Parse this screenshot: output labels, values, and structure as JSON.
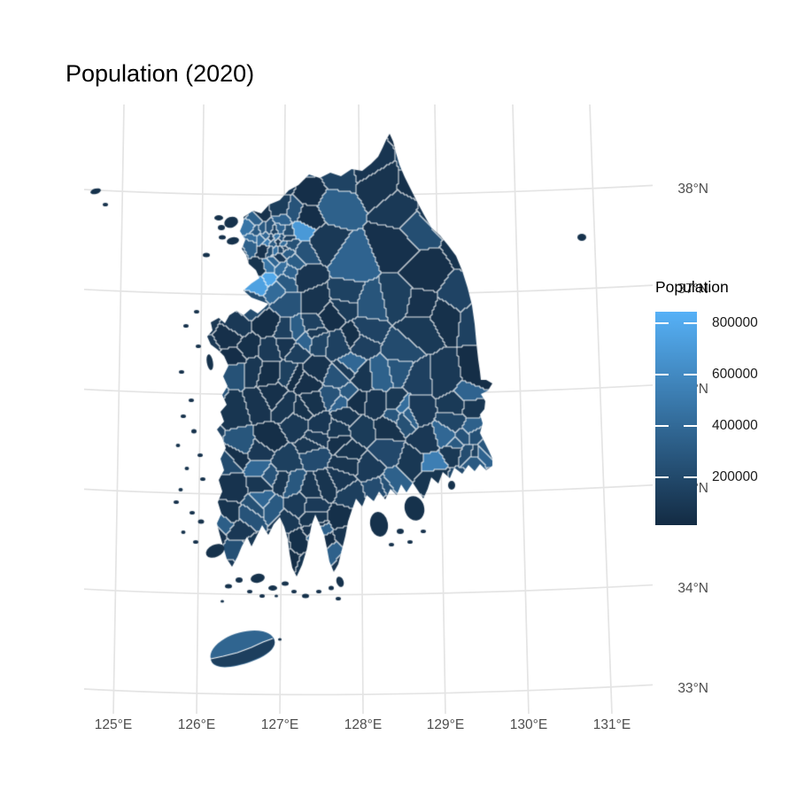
{
  "title": "Population (2020)",
  "legend": {
    "title": "Population",
    "tick_labels": [
      "800000",
      "600000",
      "400000",
      "200000"
    ]
  },
  "x_axis": {
    "tick_labels": [
      "125°E",
      "126°E",
      "127°E",
      "128°E",
      "129°E",
      "130°E",
      "131°E"
    ]
  },
  "y_axis": {
    "tick_labels": [
      "38°N",
      "37°N",
      "36°N",
      "35°N",
      "34°N",
      "33°N"
    ]
  },
  "colors": {
    "background": "#FFFFFF",
    "gridline": "#E4E4E4",
    "axis_text": "#4D4D4D",
    "region_border": "#FFFFFF",
    "scale_low": "#132B43",
    "scale_high": "#56B1F7"
  },
  "chart_data": {
    "type": "choropleth_map",
    "title": "Population (2020)",
    "region": "South Korea, municipal-level boundaries",
    "legend_title": "Population",
    "color_scale": {
      "type": "continuous_gradient",
      "low_color": "#132B43",
      "high_color": "#56B1F7",
      "tick_values": [
        200000,
        400000,
        600000,
        800000
      ],
      "approx_domain": [
        13000,
        845000
      ]
    },
    "x_axis": {
      "tick_values_deg_east": [
        125,
        126,
        127,
        128,
        129,
        130,
        131
      ]
    },
    "y_axis": {
      "tick_values_deg_north": [
        38,
        37,
        36,
        35,
        34,
        33
      ]
    },
    "grid": true,
    "legend_position": "right",
    "visual_notes": [
      "Most municipalities are shaded near the dark (low) end of the scale",
      "Lightest high-population municipalities cluster in the Seoul/Gyeonggi northwest region",
      "Scattered mid-blue municipalities around other major cities; Jeju Island has a lighter northern half and darker southern half",
      "Small dark islands dot the west and south coasts; one small island appears far east near 131°E, 37.5°N"
    ]
  }
}
